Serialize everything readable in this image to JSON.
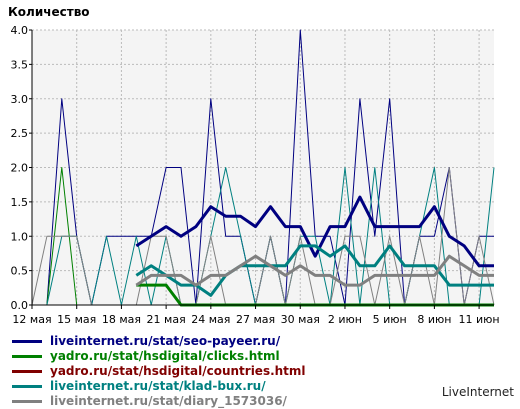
{
  "chart_data": {
    "type": "line",
    "ylabel": "Количество",
    "ylim": [
      0,
      4
    ],
    "yticks": [
      "0.0",
      "0.5",
      "1.0",
      "1.5",
      "2.0",
      "2.5",
      "3.0",
      "3.5",
      "4.0"
    ],
    "categories": [
      "12 мая",
      "13 мая",
      "14 мая",
      "15 мая",
      "16 мая",
      "17 мая",
      "18 мая",
      "19 мая",
      "20 мая",
      "21 мая",
      "22 мая",
      "23 мая",
      "24 мая",
      "25 мая",
      "26 мая",
      "27 мая",
      "28 мая",
      "29 мая",
      "30 мая",
      "31 мая",
      "1 июн",
      "2 июн",
      "3 июн",
      "4 июн",
      "5 июн",
      "6 июн",
      "7 июн",
      "8 июн",
      "9 июн",
      "10 июн",
      "11 июн",
      "12 июн"
    ],
    "x_tick_labels": [
      "12 мая",
      "15 мая",
      "18 мая",
      "21 мая",
      "24 мая",
      "27 мая",
      "30 мая",
      "2 июн",
      "5 июн",
      "8 июн",
      "11 июн"
    ],
    "grid": true,
    "legend_position": "bottom-left",
    "series": [
      {
        "name": "liveinternet.ru/stat/seo-payeer.ru/",
        "color": "#000080",
        "style": "daily",
        "values": [
          0,
          0,
          3,
          1,
          0,
          1,
          1,
          1,
          1,
          2,
          2,
          0,
          3,
          1,
          1,
          0,
          1,
          0,
          4,
          1,
          1,
          0,
          3,
          1,
          3,
          0,
          1,
          1,
          2,
          0,
          1,
          1
        ]
      },
      {
        "name": "liveinternet.ru/stat/seo-payeer.ru/",
        "color": "#000080",
        "style": "average",
        "values": [
          null,
          null,
          null,
          null,
          null,
          null,
          null,
          0.86,
          1.0,
          1.14,
          1.0,
          1.14,
          1.43,
          1.29,
          1.29,
          1.14,
          1.43,
          1.14,
          1.14,
          0.71,
          1.14,
          1.14,
          1.57,
          1.14,
          1.14,
          1.14,
          1.14,
          1.43,
          1.0,
          0.86,
          0.57,
          0.57
        ]
      },
      {
        "name": "yadro.ru/stat/hsdigital/clicks.html",
        "color": "#008000",
        "style": "daily",
        "values": [
          0,
          0,
          2,
          0,
          0,
          0,
          0,
          0,
          0,
          0,
          0,
          0,
          0,
          0,
          0,
          0,
          0,
          0,
          0,
          0,
          0,
          0,
          0,
          0,
          0,
          0,
          0,
          0,
          0,
          0,
          0,
          0
        ]
      },
      {
        "name": "yadro.ru/stat/hsdigital/clicks.html",
        "color": "#008000",
        "style": "average",
        "values": [
          null,
          null,
          null,
          null,
          null,
          null,
          null,
          0.29,
          0.29,
          0.29,
          0,
          0,
          0,
          0,
          0,
          0,
          0,
          0,
          0,
          0,
          0,
          0,
          0,
          0,
          0,
          0,
          0,
          0,
          0,
          0,
          0,
          0
        ]
      },
      {
        "name": "yadro.ru/stat/hsdigital/countries.html",
        "color": "#800000",
        "style": "daily",
        "values": [
          0,
          0,
          0,
          0,
          0,
          0,
          0,
          0,
          0,
          0,
          0,
          0,
          0,
          0,
          0,
          0,
          0,
          0,
          0,
          0,
          0,
          0,
          0,
          0,
          0,
          0,
          0,
          0,
          0,
          0,
          0,
          0
        ]
      },
      {
        "name": "liveinternet.ru/stat/klad-bux.ru/",
        "color": "#008080",
        "style": "daily",
        "values": [
          0,
          0,
          1,
          1,
          0,
          1,
          0,
          1,
          0,
          1,
          0,
          0,
          1,
          2,
          1,
          0,
          1,
          0,
          1,
          1,
          0,
          2,
          0,
          2,
          0,
          0,
          1,
          2,
          0,
          0,
          0,
          2
        ]
      },
      {
        "name": "liveinternet.ru/stat/klad-bux.ru/",
        "color": "#008080",
        "style": "average",
        "values": [
          null,
          null,
          null,
          null,
          null,
          null,
          null,
          0.43,
          0.57,
          0.43,
          0.29,
          0.29,
          0.14,
          0.43,
          0.57,
          0.57,
          0.57,
          0.57,
          0.86,
          0.86,
          0.71,
          0.86,
          0.57,
          0.57,
          0.86,
          0.57,
          0.57,
          0.57,
          0.29,
          0.29,
          0.29,
          0.29
        ]
      },
      {
        "name": "liveinternet.ru/stat/diary_1573036/",
        "color": "#808080",
        "style": "daily",
        "values": [
          0,
          1,
          1,
          1,
          0,
          0,
          0,
          0,
          1,
          1,
          0,
          0,
          1,
          0,
          0,
          0,
          1,
          0,
          1,
          0,
          0,
          1,
          1,
          0,
          1,
          0,
          1,
          0,
          2,
          0,
          1,
          0
        ]
      },
      {
        "name": "liveinternet.ru/stat/diary_1573036/",
        "color": "#808080",
        "style": "average",
        "values": [
          null,
          null,
          null,
          null,
          null,
          null,
          null,
          0.29,
          0.43,
          0.43,
          0.43,
          0.29,
          0.43,
          0.43,
          0.57,
          0.71,
          0.57,
          0.43,
          0.57,
          0.43,
          0.43,
          0.29,
          0.29,
          0.43,
          0.43,
          0.43,
          0.43,
          0.43,
          0.71,
          0.57,
          0.43,
          0.43
        ]
      }
    ]
  },
  "legend": [
    {
      "label": "liveinternet.ru/stat/seo-payeer.ru/",
      "color": "#000080"
    },
    {
      "label": "yadro.ru/stat/hsdigital/clicks.html",
      "color": "#008000"
    },
    {
      "label": "yadro.ru/stat/hsdigital/countries.html",
      "color": "#800000"
    },
    {
      "label": "liveinternet.ru/stat/klad-bux.ru/",
      "color": "#008080"
    },
    {
      "label": "liveinternet.ru/stat/diary_1573036/",
      "color": "#808080"
    }
  ],
  "credit": "LiveInternet"
}
